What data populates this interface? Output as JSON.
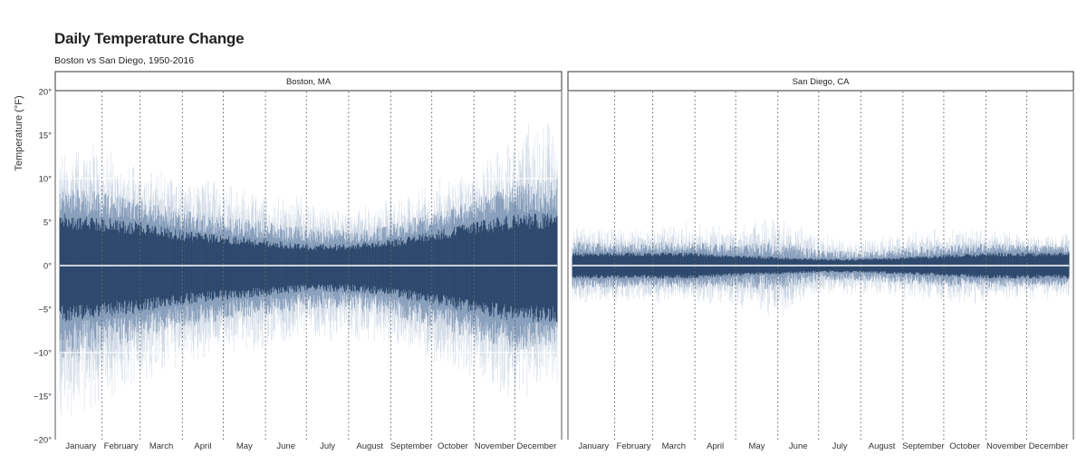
{
  "chart_data": {
    "type": "line",
    "title": "Daily Temperature Change",
    "subtitle": "Boston vs San Diego, 1950-2016",
    "ylabel": "Temperature (°F)",
    "xlabel": "",
    "ylim": [
      -20,
      20
    ],
    "yticks": [
      -20,
      -15,
      -10,
      -5,
      0,
      5,
      10,
      15,
      20
    ],
    "ytick_labels": [
      "−20°",
      "−15°",
      "−10°",
      "−5°",
      "0°",
      "5°",
      "10°",
      "15°",
      "20°"
    ],
    "xlim": [
      1,
      366
    ],
    "months": [
      "January",
      "February",
      "March",
      "April",
      "May",
      "June",
      "July",
      "August",
      "September",
      "October",
      "November",
      "December"
    ],
    "month_start_days": [
      1,
      32,
      60,
      91,
      121,
      152,
      182,
      213,
      244,
      274,
      305,
      335
    ],
    "grid": true,
    "reference_lines": [
      0
    ],
    "facets": [
      {
        "label": "Boston, MA",
        "envelope": {
          "day": [
            1,
            32,
            60,
            91,
            121,
            152,
            182,
            213,
            244,
            274,
            305,
            335,
            366
          ],
          "core_upper": [
            6,
            5.5,
            5,
            4,
            3.5,
            3,
            2.5,
            2.5,
            3,
            4,
            5,
            6,
            6
          ],
          "core_lower": [
            -6.5,
            -6,
            -5.5,
            -4.5,
            -4,
            -3.5,
            -3,
            -3,
            -3.5,
            -4.5,
            -5.5,
            -6.5,
            -6.5
          ],
          "max": [
            15,
            14,
            12,
            11,
            10,
            9,
            8,
            7,
            8,
            10,
            12,
            16,
            18
          ],
          "min": [
            -19,
            -17,
            -14,
            -12,
            -11,
            -10,
            -9,
            -9,
            -10,
            -12,
            -14,
            -16,
            -14
          ]
        }
      },
      {
        "label": "San Diego, CA",
        "envelope": {
          "day": [
            1,
            32,
            60,
            91,
            121,
            152,
            182,
            213,
            244,
            274,
            305,
            335,
            366
          ],
          "core_upper": [
            1.5,
            1.5,
            1.5,
            1.5,
            1.2,
            1,
            0.8,
            0.8,
            1,
            1.2,
            1.5,
            1.5,
            1.5
          ],
          "core_lower": [
            -1.5,
            -1.5,
            -1.5,
            -1.5,
            -1.2,
            -1,
            -0.8,
            -0.8,
            -1,
            -1.2,
            -1.5,
            -1.5,
            -1.5
          ],
          "max": [
            5,
            4.5,
            5,
            5,
            5,
            6,
            4,
            3,
            4,
            4.5,
            4.5,
            4,
            4
          ],
          "min": [
            -5,
            -4.5,
            -4.5,
            -4.5,
            -5,
            -6.5,
            -3.5,
            -3.5,
            -4,
            -4.5,
            -4.5,
            -4,
            -4
          ]
        }
      }
    ]
  }
}
